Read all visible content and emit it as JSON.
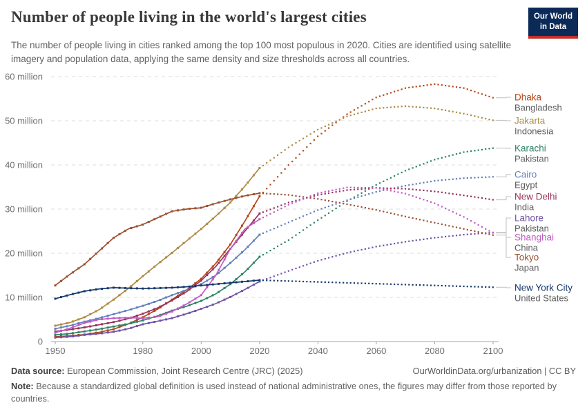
{
  "header": {
    "title": "Number of people living in the world's largest cities",
    "subtitle": "The number of people living in cities ranked among the top 100 most populous in 2020. Cities are identified using satellite imagery and population data, applying the same density and size thresholds across all countries.",
    "logo": {
      "line1": "Our World",
      "line2": "in Data",
      "bg": "#0b2a58",
      "stripe": "#c22f2a"
    }
  },
  "footer": {
    "source_label": "Data source:",
    "source_value": " European Commission, Joint Research Centre (JRC) (2025)",
    "link": "OurWorldinData.org/urbanization | CC BY",
    "note_label": "Note:",
    "note_value": " Because a standardized global definition is used instead of national administrative ones, the figures may differ from those reported by countries."
  },
  "chart_data": {
    "type": "line",
    "title": "Number of people living in the world's largest cities",
    "unit": "million people",
    "grid": true,
    "projection_style": "dotted after 2020",
    "x_ticks": [
      1950,
      1980,
      2000,
      2020,
      2040,
      2060,
      2080,
      2100
    ],
    "x_range": [
      1950,
      2100
    ],
    "y_range": [
      0,
      60
    ],
    "y_ticks": [
      {
        "v": 0,
        "label": "0"
      },
      {
        "v": 10,
        "label": "10 million"
      },
      {
        "v": 20,
        "label": "20 million"
      },
      {
        "v": 30,
        "label": "30 million"
      },
      {
        "v": 40,
        "label": "40 million"
      },
      {
        "v": 50,
        "label": "50 million"
      },
      {
        "v": 60,
        "label": "60 million"
      }
    ],
    "history_years": [
      1950,
      1955,
      1960,
      1965,
      1970,
      1975,
      1980,
      1985,
      1990,
      1995,
      2000,
      2005,
      2010,
      2015,
      2020
    ],
    "projection_years": [
      2020,
      2030,
      2040,
      2050,
      2060,
      2070,
      2080,
      2090,
      2100
    ],
    "series": [
      {
        "city": "Dhaka",
        "country": "Bangladesh",
        "color": "#B5461B",
        "history": [
          1.1,
          1.3,
          1.6,
          2.1,
          2.8,
          4.0,
          5.5,
          7.3,
          9.5,
          11.7,
          14.2,
          17.7,
          22.0,
          27.3,
          32.9
        ],
        "projection": [
          32.9,
          40.0,
          46.5,
          51.5,
          55.3,
          57.4,
          58.3,
          57.4,
          55.2
        ]
      },
      {
        "city": "Jakarta",
        "country": "Indonesia",
        "color": "#AD8A43",
        "history": [
          3.6,
          4.3,
          5.5,
          7.2,
          9.5,
          12.0,
          14.8,
          17.5,
          20.1,
          22.8,
          25.5,
          28.4,
          31.5,
          35.2,
          39.3
        ],
        "projection": [
          39.3,
          44.0,
          48.0,
          51.0,
          52.8,
          53.3,
          52.8,
          51.6,
          50.1
        ]
      },
      {
        "city": "Karachi",
        "country": "Pakistan",
        "color": "#2C8465",
        "history": [
          1.5,
          1.8,
          2.3,
          2.8,
          3.4,
          4.0,
          4.8,
          5.8,
          7.0,
          8.0,
          9.2,
          10.8,
          13.0,
          15.8,
          19.2
        ],
        "projection": [
          19.2,
          23.0,
          27.5,
          31.8,
          35.5,
          38.7,
          41.2,
          42.9,
          43.8
        ]
      },
      {
        "city": "Cairo",
        "country": "Egypt",
        "color": "#6180BB",
        "history": [
          2.9,
          3.6,
          4.5,
          5.3,
          6.2,
          7.1,
          8.1,
          9.2,
          10.5,
          11.7,
          13.0,
          15.0,
          17.8,
          20.8,
          24.2
        ],
        "projection": [
          24.2,
          27.0,
          29.8,
          32.0,
          33.9,
          35.3,
          36.4,
          37.0,
          37.3
        ]
      },
      {
        "city": "New Delhi",
        "country": "India",
        "color": "#98325A",
        "history": [
          2.3,
          2.7,
          3.2,
          3.8,
          4.4,
          5.2,
          6.3,
          7.6,
          9.3,
          11.3,
          13.8,
          17.0,
          21.0,
          25.0,
          29.0
        ],
        "projection": [
          29.0,
          31.5,
          33.2,
          34.3,
          34.8,
          34.6,
          34.0,
          33.1,
          32.1
        ]
      },
      {
        "city": "Lahore",
        "country": "Pakistan",
        "color": "#6F52A8",
        "history": [
          0.9,
          1.1,
          1.5,
          1.8,
          2.2,
          2.9,
          3.9,
          4.6,
          5.3,
          6.3,
          7.4,
          8.6,
          10.1,
          11.8,
          13.6
        ],
        "projection": [
          13.6,
          16.0,
          18.3,
          20.1,
          21.5,
          22.6,
          23.5,
          24.2,
          24.7
        ]
      },
      {
        "city": "Shanghai",
        "country": "China",
        "color": "#C05BC5",
        "history": [
          2.0,
          3.0,
          4.2,
          5.0,
          5.3,
          5.4,
          5.3,
          5.6,
          6.8,
          8.5,
          10.5,
          15.0,
          21.0,
          25.5,
          27.7
        ],
        "projection": [
          27.7,
          31.0,
          33.6,
          34.9,
          34.8,
          33.5,
          31.3,
          28.2,
          24.6
        ]
      },
      {
        "city": "Tokyo",
        "country": "Japan",
        "color": "#9D5033",
        "history": [
          12.7,
          15.2,
          17.5,
          20.5,
          23.5,
          25.5,
          26.5,
          28.0,
          29.5,
          30.0,
          30.3,
          31.3,
          32.2,
          33.0,
          33.6
        ],
        "projection": [
          33.6,
          33.2,
          32.3,
          31.1,
          29.8,
          28.3,
          26.9,
          25.5,
          24.1
        ]
      },
      {
        "city": "New York City",
        "country": "United States",
        "color": "#15386B",
        "history": [
          9.7,
          10.6,
          11.4,
          11.9,
          12.2,
          12.1,
          12.0,
          12.1,
          12.2,
          12.4,
          12.7,
          13.0,
          13.3,
          13.6,
          13.9
        ],
        "projection": [
          13.9,
          13.7,
          13.5,
          13.3,
          13.1,
          12.9,
          12.7,
          12.5,
          12.3
        ]
      }
    ]
  }
}
